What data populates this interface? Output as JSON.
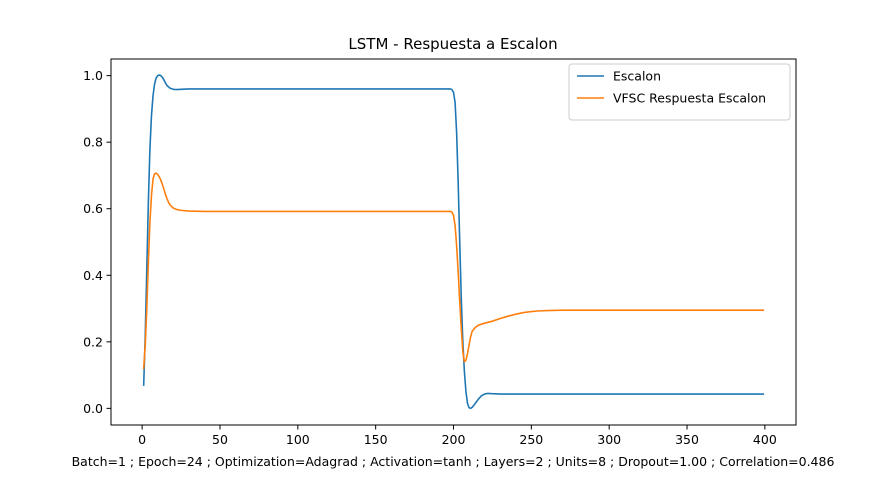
{
  "chart_data": {
    "type": "line",
    "title": "LSTM - Respuesta a Escalon",
    "xlabel": "Batch=1 ; Epoch=24 ; Optimization=Adagrad ; Activation=tanh ; Layers=2 ; Units=8 ; Dropout=1.00 ; Correlation=0.486",
    "ylabel": "",
    "xlim": [
      -20,
      420
    ],
    "ylim": [
      -0.05,
      1.05
    ],
    "xticks": [
      0,
      50,
      100,
      150,
      200,
      250,
      300,
      350,
      400
    ],
    "yticks": [
      0.0,
      0.2,
      0.4,
      0.6,
      0.8,
      1.0
    ],
    "xtick_labels": [
      "0",
      "50",
      "100",
      "150",
      "200",
      "250",
      "300",
      "350",
      "400"
    ],
    "ytick_labels": [
      "0.0",
      "0.2",
      "0.4",
      "0.6",
      "0.8",
      "1.0"
    ],
    "grid": false,
    "legend_position": "top-right",
    "series": [
      {
        "name": "Escalon",
        "color": "#1f77b4",
        "points": [
          [
            1,
            0.07
          ],
          [
            2,
            0.22
          ],
          [
            3,
            0.42
          ],
          [
            4,
            0.62
          ],
          [
            5,
            0.78
          ],
          [
            6,
            0.88
          ],
          [
            7,
            0.94
          ],
          [
            8,
            0.975
          ],
          [
            9,
            0.993
          ],
          [
            10,
            1.0
          ],
          [
            11,
            1.002
          ],
          [
            12,
            1.0
          ],
          [
            13,
            0.995
          ],
          [
            14,
            0.987
          ],
          [
            15,
            0.978
          ],
          [
            16,
            0.97
          ],
          [
            18,
            0.962
          ],
          [
            20,
            0.959
          ],
          [
            22,
            0.958
          ],
          [
            25,
            0.959
          ],
          [
            30,
            0.96
          ],
          [
            50,
            0.96
          ],
          [
            100,
            0.96
          ],
          [
            150,
            0.96
          ],
          [
            190,
            0.96
          ],
          [
            198,
            0.96
          ],
          [
            199,
            0.958
          ],
          [
            200,
            0.95
          ],
          [
            201,
            0.92
          ],
          [
            202,
            0.83
          ],
          [
            203,
            0.68
          ],
          [
            204,
            0.5
          ],
          [
            205,
            0.33
          ],
          [
            206,
            0.2
          ],
          [
            207,
            0.11
          ],
          [
            208,
            0.05
          ],
          [
            209,
            0.015
          ],
          [
            210,
            0.002
          ],
          [
            211,
            0.0
          ],
          [
            212,
            0.003
          ],
          [
            214,
            0.015
          ],
          [
            216,
            0.028
          ],
          [
            218,
            0.038
          ],
          [
            220,
            0.043
          ],
          [
            222,
            0.045
          ],
          [
            225,
            0.044
          ],
          [
            230,
            0.043
          ],
          [
            250,
            0.043
          ],
          [
            300,
            0.043
          ],
          [
            350,
            0.043
          ],
          [
            399,
            0.043
          ]
        ]
      },
      {
        "name": "VFSC Respuesta Escalon",
        "color": "#ff7f0e",
        "points": [
          [
            1,
            0.12
          ],
          [
            2,
            0.19
          ],
          [
            3,
            0.3
          ],
          [
            4,
            0.44
          ],
          [
            5,
            0.56
          ],
          [
            6,
            0.64
          ],
          [
            7,
            0.69
          ],
          [
            8,
            0.705
          ],
          [
            9,
            0.707
          ],
          [
            10,
            0.703
          ],
          [
            11,
            0.696
          ],
          [
            12,
            0.686
          ],
          [
            13,
            0.673
          ],
          [
            14,
            0.658
          ],
          [
            15,
            0.643
          ],
          [
            16,
            0.63
          ],
          [
            17,
            0.619
          ],
          [
            18,
            0.611
          ],
          [
            20,
            0.602
          ],
          [
            22,
            0.598
          ],
          [
            25,
            0.595
          ],
          [
            30,
            0.593
          ],
          [
            40,
            0.592
          ],
          [
            100,
            0.592
          ],
          [
            150,
            0.592
          ],
          [
            195,
            0.592
          ],
          [
            198,
            0.592
          ],
          [
            199,
            0.59
          ],
          [
            200,
            0.58
          ],
          [
            201,
            0.55
          ],
          [
            202,
            0.49
          ],
          [
            203,
            0.41
          ],
          [
            204,
            0.32
          ],
          [
            205,
            0.24
          ],
          [
            206,
            0.17
          ],
          [
            207,
            0.14
          ],
          [
            208,
            0.145
          ],
          [
            209,
            0.165
          ],
          [
            210,
            0.19
          ],
          [
            211,
            0.215
          ],
          [
            212,
            0.232
          ],
          [
            214,
            0.243
          ],
          [
            216,
            0.25
          ],
          [
            220,
            0.256
          ],
          [
            225,
            0.262
          ],
          [
            230,
            0.27
          ],
          [
            235,
            0.277
          ],
          [
            240,
            0.283
          ],
          [
            245,
            0.288
          ],
          [
            250,
            0.291
          ],
          [
            255,
            0.293
          ],
          [
            260,
            0.294
          ],
          [
            270,
            0.295
          ],
          [
            300,
            0.295
          ],
          [
            350,
            0.295
          ],
          [
            399,
            0.295
          ]
        ]
      }
    ]
  }
}
